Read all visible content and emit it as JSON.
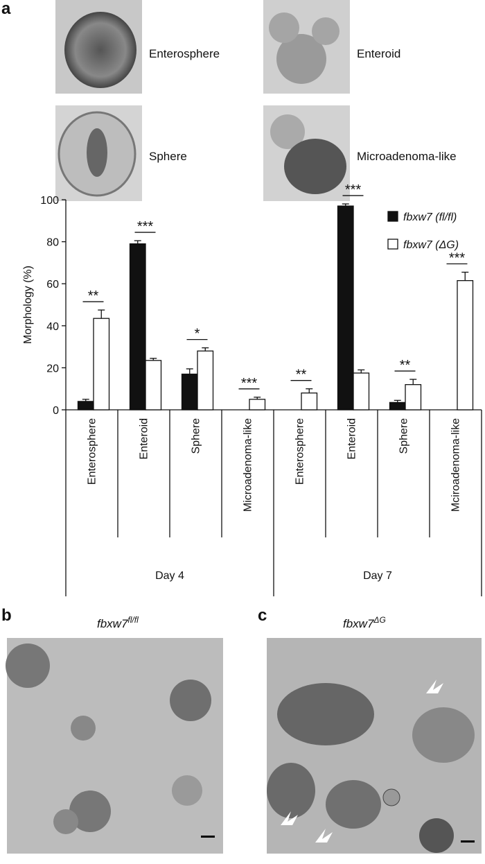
{
  "panel_a": {
    "label": "a",
    "image_labels": [
      "Enterosphere",
      "Enteroid",
      "Sphere",
      "Microadenoma-like"
    ]
  },
  "chart_data": {
    "type": "bar",
    "y_label": "Morphology (%)",
    "categories": [
      "Enterosphere",
      "Enteroid",
      "Sphere",
      "Microadenoma-like",
      "Enterosphere",
      "Enteroid",
      "Sphere",
      "Mciroadenoma-like"
    ],
    "groups": [
      "Day 4",
      "Day 7"
    ],
    "series": [
      {
        "name": "fbxw7 (fl/fl)",
        "color": "#111111",
        "values": [
          4,
          79,
          17,
          0,
          0,
          97,
          3.5,
          0
        ],
        "errors": [
          1,
          1.5,
          2.5,
          0,
          0,
          1,
          1,
          0
        ]
      },
      {
        "name": "fbxw7 (ΔG)",
        "color": "#ffffff",
        "values": [
          43.5,
          23.5,
          28,
          5,
          8,
          17.5,
          12,
          61.5
        ],
        "errors": [
          4,
          1,
          1.5,
          1,
          2,
          1.5,
          2.5,
          4
        ]
      }
    ],
    "annotations": [
      "**",
      "***",
      "*",
      "***",
      "**",
      "***",
      "**",
      "***"
    ],
    "ylim": [
      0,
      100
    ],
    "yticks": [
      0,
      20,
      40,
      60,
      80,
      100
    ],
    "legend": "upper right"
  },
  "panel_b": {
    "label": "b",
    "title": "fbxw7",
    "title_sup": "fl/fl"
  },
  "panel_c": {
    "label": "c",
    "title": "fbxw7",
    "title_sup": "ΔG"
  }
}
